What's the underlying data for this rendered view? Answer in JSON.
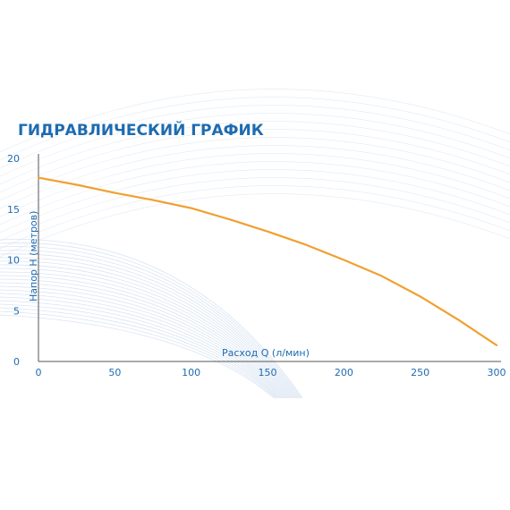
{
  "colors": {
    "title": "#1e6bb0",
    "axis_text": "#1e6bb0",
    "curve": "#f0a030",
    "swoosh": "#c9d9ec"
  },
  "chart_data": {
    "type": "line",
    "title": "ГИДРАВЛИЧЕСКИЙ ГРАФИК",
    "xlabel": "Расход Q (л/мин)",
    "ylabel": "Напор Н (метров)",
    "xlim": [
      0,
      300
    ],
    "ylim": [
      0,
      20
    ],
    "xticks": [
      0,
      50,
      100,
      150,
      200,
      250,
      300
    ],
    "yticks": [
      0,
      5,
      10,
      15,
      20
    ],
    "grid": false,
    "series": [
      {
        "x": [
          0,
          25,
          50,
          75,
          100,
          125,
          150,
          175,
          200,
          225,
          250,
          275,
          300
        ],
        "y": [
          18.1,
          17.4,
          16.6,
          15.9,
          15.1,
          14.0,
          12.8,
          11.5,
          10.0,
          8.4,
          6.4,
          4.1,
          1.6
        ]
      }
    ]
  }
}
